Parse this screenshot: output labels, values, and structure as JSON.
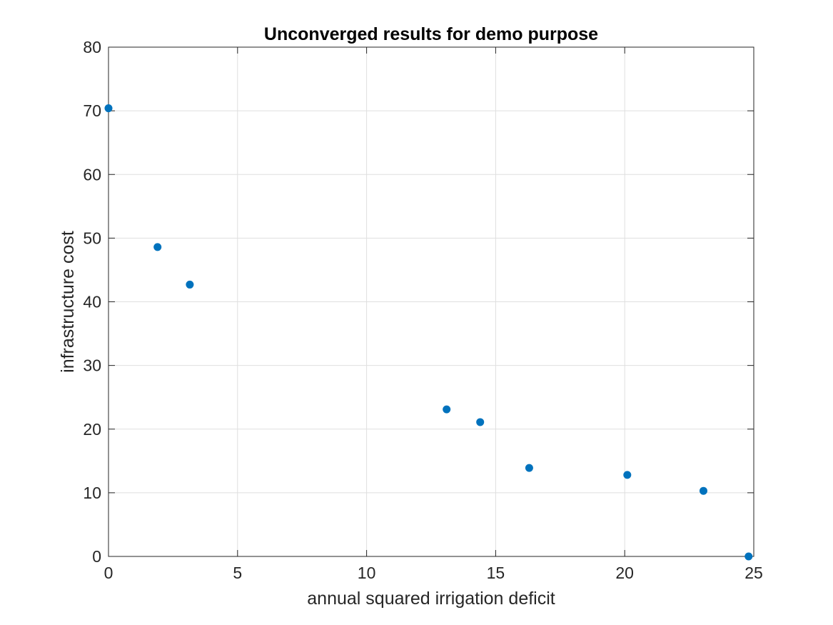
{
  "chart_data": {
    "type": "scatter",
    "title": "Unconverged results for demo purpose",
    "xlabel": "annual squared irrigation deficit",
    "ylabel": "infrastructure cost",
    "xlim": [
      0,
      25
    ],
    "ylim": [
      0,
      80
    ],
    "xticks": [
      "0",
      "5",
      "10",
      "15",
      "20",
      "25"
    ],
    "yticks": [
      "0",
      "10",
      "20",
      "30",
      "40",
      "50",
      "60",
      "70",
      "80"
    ],
    "grid": true,
    "box": true,
    "marker_color": "#0072BD",
    "points": [
      {
        "x": 0.0,
        "y": 70.4
      },
      {
        "x": 1.9,
        "y": 48.6
      },
      {
        "x": 3.15,
        "y": 42.7
      },
      {
        "x": 13.1,
        "y": 23.1
      },
      {
        "x": 14.4,
        "y": 21.1
      },
      {
        "x": 16.3,
        "y": 13.9
      },
      {
        "x": 20.1,
        "y": 12.8
      },
      {
        "x": 23.05,
        "y": 10.3
      },
      {
        "x": 24.8,
        "y": 0.0
      }
    ]
  }
}
